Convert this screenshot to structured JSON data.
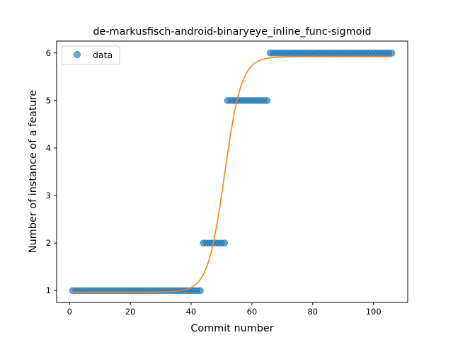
{
  "chart_data": {
    "type": "scatter",
    "title": "de-markusfisch-android-binaryeye_inline_func-sigmoid",
    "xlabel": "Commit number",
    "ylabel": "Number of instance of a feature",
    "xlim": [
      -4.25,
      111.25
    ],
    "ylim": [
      0.75,
      6.25
    ],
    "x_ticks": [
      0,
      20,
      40,
      60,
      80,
      100
    ],
    "y_ticks": [
      1,
      2,
      3,
      4,
      5,
      6
    ],
    "grid": false,
    "legend": {
      "placement": "top-left",
      "entries": [
        "data"
      ]
    },
    "series": [
      {
        "name": "data",
        "kind": "scatter",
        "color": "#1f77b4",
        "alpha": 0.65,
        "points": [
          {
            "x_from": 1,
            "x_to": 43,
            "y": 1
          },
          {
            "x_from": 44,
            "x_to": 51,
            "y": 2
          },
          {
            "x_from": 52,
            "x_to": 65,
            "y": 5
          },
          {
            "x_from": 66,
            "x_to": 106,
            "y": 6
          }
        ]
      },
      {
        "kind": "line",
        "color": "#ff7f0e",
        "model": "sigmoid",
        "params": {
          "low": 0.97,
          "high": 5.92,
          "midpoint": 51.0,
          "steepness": 0.36
        },
        "x_range": [
          1,
          106
        ]
      }
    ]
  }
}
